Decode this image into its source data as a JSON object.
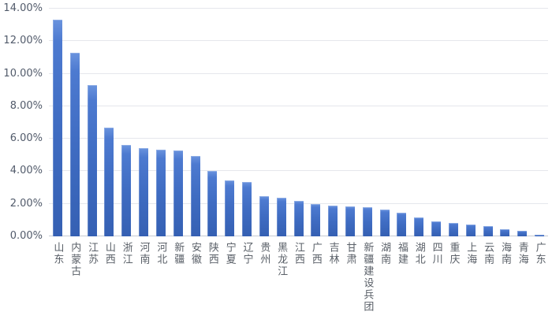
{
  "chart_data": {
    "type": "bar",
    "title": "",
    "xlabel": "",
    "ylabel": "",
    "categories": [
      "山东",
      "内蒙古",
      "江苏",
      "山西",
      "浙江",
      "河南",
      "河北",
      "新疆",
      "安徽",
      "陕西",
      "宁夏",
      "辽宁",
      "贵州",
      "黑龙江",
      "江西",
      "广西",
      "吉林",
      "甘肃",
      "新疆建设兵团",
      "湖南",
      "福建",
      "湖北",
      "四川",
      "重庆",
      "上海",
      "云南",
      "海南",
      "青海",
      "广东"
    ],
    "values": [
      13.3,
      11.3,
      9.3,
      6.7,
      5.6,
      5.45,
      5.35,
      5.3,
      4.95,
      4.0,
      3.45,
      3.35,
      2.45,
      2.4,
      2.2,
      2.0,
      1.9,
      1.85,
      1.8,
      1.65,
      1.45,
      1.15,
      0.9,
      0.85,
      0.75,
      0.65,
      0.45,
      0.35,
      0.1
    ],
    "value_unit": "%",
    "ylim": [
      0,
      14
    ],
    "y_tick_step": 2,
    "y_tick_labels": [
      "0.00%",
      "2.00%",
      "4.00%",
      "6.00%",
      "8.00%",
      "10.00%",
      "12.00%",
      "14.00%"
    ],
    "grid": "horizontal",
    "legend": "none"
  },
  "colors": {
    "background": "#ffffff",
    "bar_gradient_top": "#6a93de",
    "bar_gradient_mid": "#3f6cc2",
    "bar_gradient_bottom": "#3560b3",
    "gridline": "#e5e7ec",
    "axis_line": "#c6cad2",
    "y_tick_text": "#525b6b",
    "x_tick_text": "#5a6068"
  }
}
